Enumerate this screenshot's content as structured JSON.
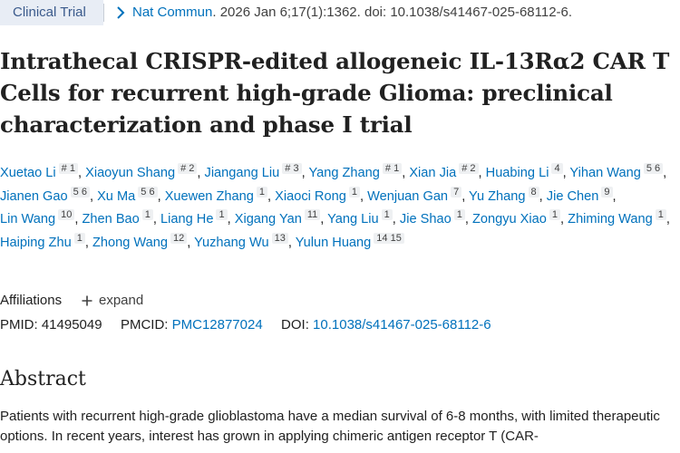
{
  "header": {
    "badge": "Clinical Trial",
    "journal": "Nat Commun",
    "citation_rest": ". 2026 Jan 6;17(1):1362. doi: 10.1038/s41467-025-68112-6."
  },
  "title": "Intrathecal CRISPR-edited allogeneic IL-13Rα2 CAR T Cells for recurrent high-grade Glioma: preclinical characterization and phase I trial",
  "authors": [
    {
      "name": "Xuetao Li",
      "sup": "# 1"
    },
    {
      "name": "Xiaoyun Shang",
      "sup": "# 2"
    },
    {
      "name": "Jiangang Liu",
      "sup": "# 3"
    },
    {
      "name": "Yang Zhang",
      "sup": "# 1"
    },
    {
      "name": "Xian Jia",
      "sup": "# 2"
    },
    {
      "name": "Huabing Li",
      "sup": "4"
    },
    {
      "name": "Yihan Wang",
      "sup": "5 6"
    },
    {
      "name": "Jianen Gao",
      "sup": "5 6"
    },
    {
      "name": "Xu Ma",
      "sup": "5 6"
    },
    {
      "name": "Xuewen Zhang",
      "sup": "1"
    },
    {
      "name": "Xiaoci Rong",
      "sup": "1"
    },
    {
      "name": "Wenjuan Gan",
      "sup": "7"
    },
    {
      "name": "Yu Zhang",
      "sup": "8"
    },
    {
      "name": "Jie Chen",
      "sup": "9"
    },
    {
      "name": "Lin Wang",
      "sup": "10"
    },
    {
      "name": "Zhen Bao",
      "sup": "1"
    },
    {
      "name": "Liang He",
      "sup": "1"
    },
    {
      "name": "Xigang Yan",
      "sup": "11"
    },
    {
      "name": "Yang Liu",
      "sup": "1"
    },
    {
      "name": "Jie Shao",
      "sup": "1"
    },
    {
      "name": "Zongyu Xiao",
      "sup": "1"
    },
    {
      "name": "Zhiming Wang",
      "sup": "1"
    },
    {
      "name": "Haiping Zhu",
      "sup": "1"
    },
    {
      "name": "Zhong Wang",
      "sup": "12"
    },
    {
      "name": "Yuzhang Wu",
      "sup": "13"
    },
    {
      "name": "Yulun Huang",
      "sup": "14 15"
    }
  ],
  "affiliations": {
    "label": "Affiliations",
    "toggle": "expand"
  },
  "ids": {
    "pmid_label": "PMID:",
    "pmid": "41495049",
    "pmcid_label": "PMCID:",
    "pmcid": "PMC12877024",
    "doi_label": "DOI:",
    "doi": "10.1038/s41467-025-68112-6"
  },
  "abstract": {
    "heading": "Abstract",
    "text": "Patients with recurrent high-grade glioblastoma have a median survival of 6-8 months, with limited therapeutic options. In recent years, interest has grown in applying chimeric antigen receptor T (CAR-"
  }
}
